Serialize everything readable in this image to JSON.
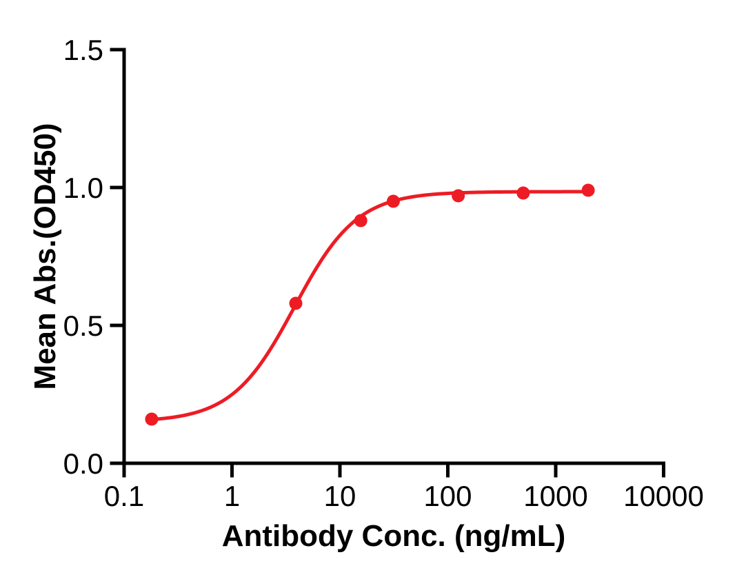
{
  "figure": {
    "background_color": "#ffffff",
    "axis_color": "#000000",
    "accent_red": "#ED1C24"
  },
  "chart_data": {
    "type": "scatter",
    "title": "",
    "xlabel": "Antibody Conc. (ng/mL)",
    "ylabel": "Mean Abs.(OD450)",
    "x_scale": "log10",
    "xlim": [
      0.1,
      10000
    ],
    "ylim": [
      0.0,
      1.5
    ],
    "x_ticks": [
      0.1,
      1,
      10,
      100,
      1000,
      10000
    ],
    "x_tick_labels": [
      "0.1",
      "1",
      "10",
      "100",
      "1000",
      "10000"
    ],
    "y_ticks": [
      0.0,
      0.5,
      1.0,
      1.5
    ],
    "y_tick_labels": [
      "0.0",
      "0.5",
      "1.0",
      "1.5"
    ],
    "grid": false,
    "legend": null,
    "series": [
      {
        "name": "Mean Abs.(OD450)",
        "marker": "circle",
        "marker_color": "#ED1C24",
        "line_color": "#ED1C24",
        "points": [
          {
            "x": 0.18,
            "y": 0.16
          },
          {
            "x": 3.9,
            "y": 0.58
          },
          {
            "x": 15.6,
            "y": 0.88
          },
          {
            "x": 31.25,
            "y": 0.95
          },
          {
            "x": 125,
            "y": 0.97
          },
          {
            "x": 500,
            "y": 0.98
          },
          {
            "x": 2000,
            "y": 0.99
          }
        ],
        "fit_curve": {
          "model": "4PL",
          "bottom": 0.15,
          "top": 0.985,
          "ec50": 3.8,
          "hill": 1.5,
          "x_start": 0.18,
          "x_end": 2000
        }
      }
    ]
  }
}
